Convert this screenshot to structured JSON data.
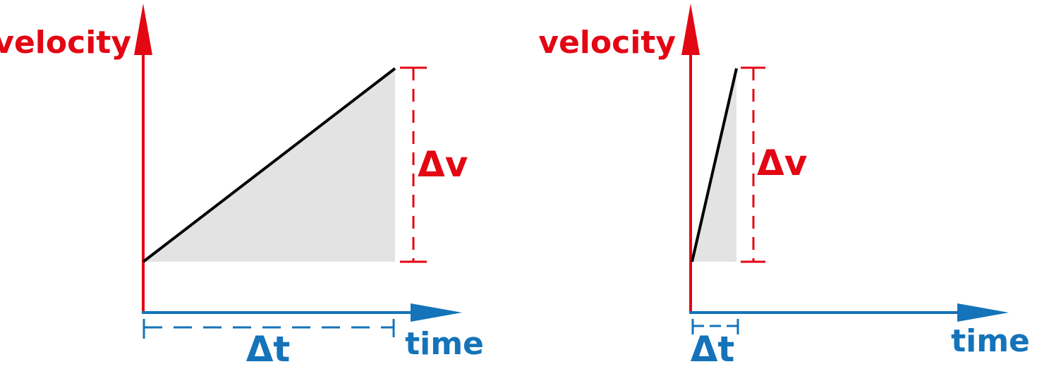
{
  "colors": {
    "velocity": "#e30613",
    "time": "#1473b9",
    "line": "#000000",
    "shade": "#e3e3e3"
  },
  "panels": [
    {
      "y_axis_label": "velocity",
      "x_axis_label": "time",
      "delta_v_label": "Δv",
      "delta_t_label": "Δt"
    },
    {
      "y_axis_label": "velocity",
      "x_axis_label": "time",
      "delta_v_label": "Δv",
      "delta_t_label": "Δt"
    }
  ]
}
